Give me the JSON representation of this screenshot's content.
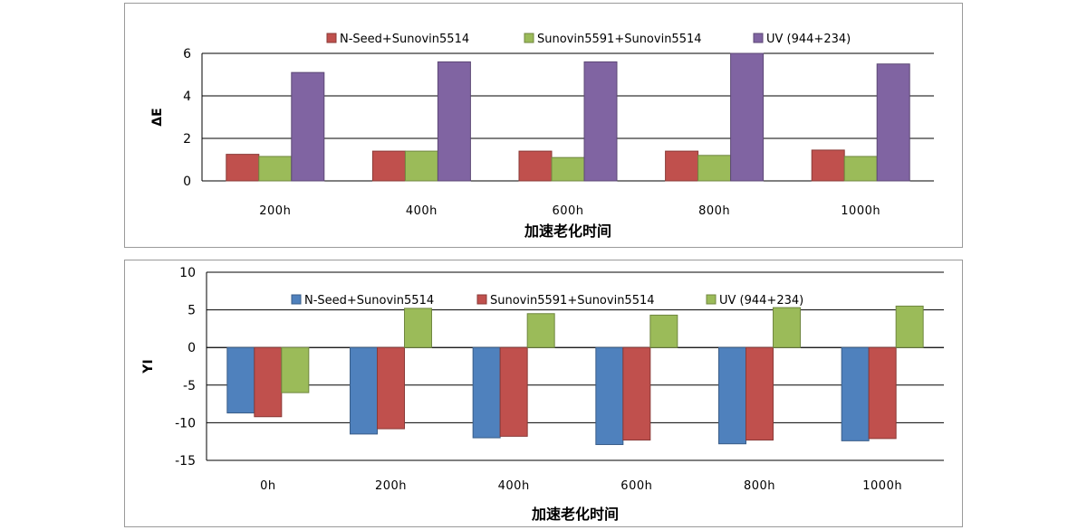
{
  "chart_data": [
    {
      "type": "bar",
      "categories": [
        "200h",
        "400h",
        "600h",
        "800h",
        "1000h"
      ],
      "series": [
        {
          "name": "N-Seed+Sunovin5514",
          "color": "#C0504D",
          "values": [
            1.25,
            1.4,
            1.4,
            1.4,
            1.45
          ]
        },
        {
          "name": "Sunovin5591+Sunovin5514",
          "color": "#9BBB59",
          "values": [
            1.15,
            1.4,
            1.1,
            1.2,
            1.15
          ]
        },
        {
          "name": "UV (944+234)",
          "color": "#8064A2",
          "values": [
            5.1,
            5.6,
            5.6,
            6.0,
            5.5
          ]
        }
      ],
      "xlabel": "加速老化时间",
      "ylabel": "ΔE",
      "ylim": [
        0,
        6
      ],
      "yticks": [
        "0",
        "2",
        "4",
        "6"
      ],
      "grid": true,
      "legend_position": "top"
    },
    {
      "type": "bar",
      "categories": [
        "0h",
        "200h",
        "400h",
        "600h",
        "800h",
        "1000h"
      ],
      "series": [
        {
          "name": "N-Seed+Sunovin5514",
          "color": "#4F81BD",
          "values": [
            -8.7,
            -11.5,
            -12.0,
            -12.9,
            -12.8,
            -12.4
          ]
        },
        {
          "name": "Sunovin5591+Sunovin5514",
          "color": "#C0504D",
          "values": [
            -9.2,
            -10.8,
            -11.8,
            -12.3,
            -12.3,
            -12.1
          ]
        },
        {
          "name": "UV (944+234)",
          "color": "#9BBB59",
          "values": [
            -6.0,
            5.2,
            4.5,
            4.3,
            5.3,
            5.5
          ]
        }
      ],
      "xlabel": "加速老化时间",
      "ylabel": "YI",
      "ylim": [
        -15,
        10
      ],
      "yticks": [
        "-15",
        "-10",
        "-5",
        "0",
        "5",
        "10"
      ],
      "grid": true,
      "legend_position": "top"
    }
  ]
}
